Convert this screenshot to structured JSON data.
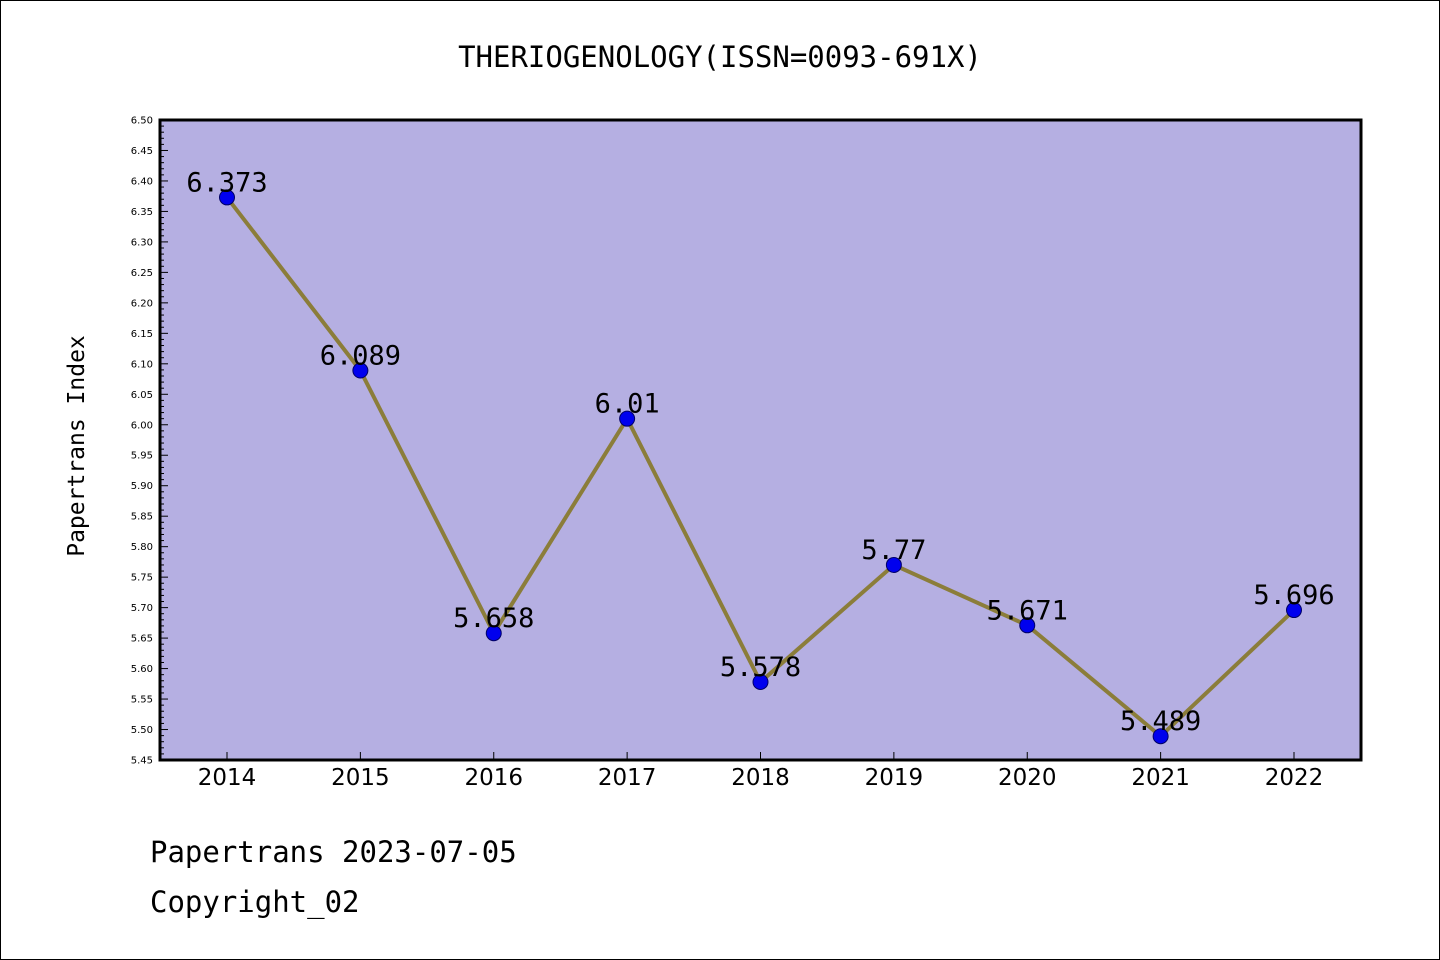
{
  "chart_data": {
    "type": "line",
    "title": "THERIOGENOLOGY(ISSN=0093-691X)",
    "xlabel": "",
    "ylabel": "Papertrans Index",
    "categories": [
      "2014",
      "2015",
      "2016",
      "2017",
      "2018",
      "2019",
      "2020",
      "2021",
      "2022"
    ],
    "series": [
      {
        "values": [
          6.373,
          6.089,
          5.658,
          6.01,
          5.578,
          5.77,
          5.671,
          5.489,
          5.696
        ],
        "labels": [
          "6.373",
          "6.089",
          "5.658",
          "6.01",
          "5.578",
          "5.77",
          "5.671",
          "5.489",
          "5.696"
        ]
      }
    ],
    "ylim": [
      5.45,
      6.5
    ],
    "yticks": [
      "5.45",
      "5.50",
      "5.55",
      "5.60",
      "5.65",
      "5.70",
      "5.75",
      "5.80",
      "5.85",
      "5.90",
      "5.95",
      "6.00",
      "6.05",
      "6.10",
      "6.15",
      "6.20",
      "6.25",
      "6.30",
      "6.35",
      "6.40",
      "6.45",
      "6.50"
    ],
    "grid": false,
    "legend": "none",
    "colors": {
      "plot_background": "#b5afe2",
      "line": "#8b7d3a",
      "marker": "#0000ee",
      "marker_edge": "#000066"
    }
  },
  "footer": {
    "date_line": "Papertrans 2023-07-05",
    "copyright_line": "Copyright_02"
  }
}
